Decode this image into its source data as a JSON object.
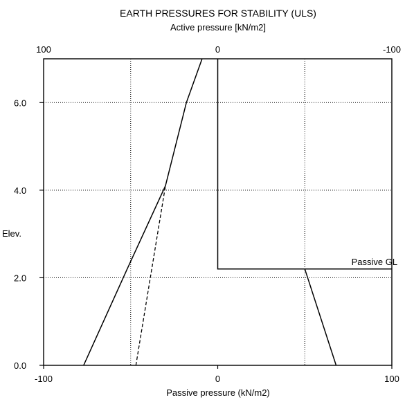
{
  "chart_data": {
    "type": "line",
    "title": "EARTH PRESSURES FOR STABILITY  (ULS)",
    "top_axis": {
      "label": "Active pressure [kN/m2]",
      "range": [
        100,
        -100
      ],
      "ticks": [
        100,
        0,
        -100
      ],
      "tick_labels": [
        "100",
        "0",
        "-100"
      ]
    },
    "bottom_axis": {
      "label": "Passive pressure (kN/m2)",
      "range": [
        -100,
        100
      ],
      "ticks": [
        -100,
        0,
        100
      ],
      "tick_labels": [
        "-100",
        "0",
        "100"
      ]
    },
    "y_axis": {
      "label": "Elev.",
      "range": [
        0,
        7.0
      ],
      "ticks": [
        0,
        2,
        4,
        6
      ],
      "tick_labels": [
        "0.0",
        "2.0",
        "4.0",
        "6.0"
      ]
    },
    "grid": true,
    "gridlines_x": [
      -50,
      50
    ],
    "series": [
      {
        "axis": "bottom",
        "style": "solid",
        "points": [
          [
            -77,
            0
          ],
          [
            -52,
            2.2
          ],
          [
            -30,
            4.1
          ],
          [
            -18,
            6.0
          ],
          [
            -9,
            7.0
          ]
        ]
      },
      {
        "axis": "bottom",
        "style": "dashed",
        "points": [
          [
            -47,
            0
          ],
          [
            -30,
            4.1
          ]
        ]
      },
      {
        "axis": "bottom",
        "style": "solid",
        "points": [
          [
            0,
            7.0
          ],
          [
            0,
            2.2
          ],
          [
            100,
            2.2
          ]
        ]
      },
      {
        "axis": "bottom",
        "style": "solid",
        "points": [
          [
            50,
            2.2
          ],
          [
            68,
            0
          ]
        ]
      }
    ],
    "annotations": [
      {
        "text": "Passive GL",
        "x": 90,
        "y": 2.2
      }
    ]
  }
}
